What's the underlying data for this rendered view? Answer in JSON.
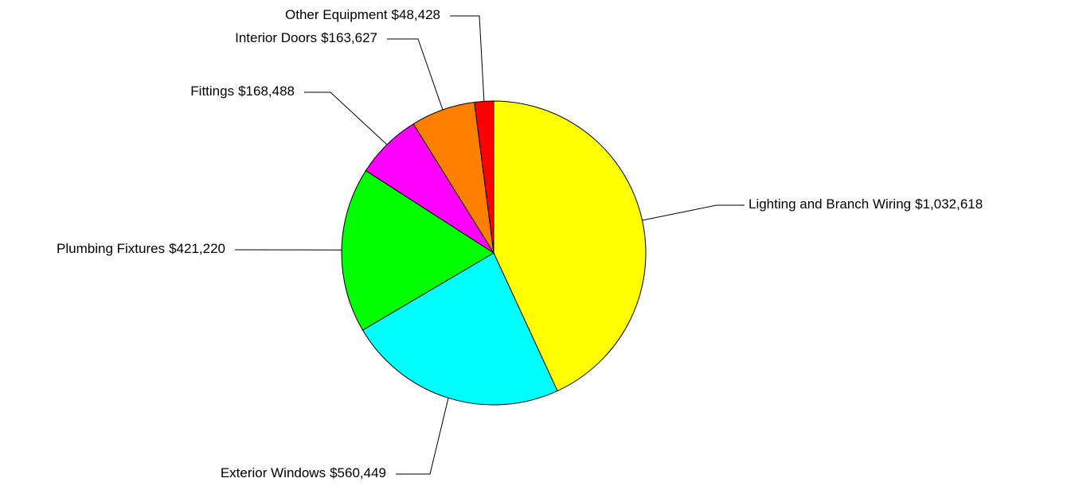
{
  "chart_data": {
    "type": "pie",
    "categories": [
      "Lighting and Branch Wiring",
      "Exterior Windows",
      "Plumbing Fixtures",
      "Fittings",
      "Interior Doors",
      "Other Equipment"
    ],
    "values": [
      1032618,
      560449,
      421220,
      168488,
      163627,
      48428
    ],
    "value_labels": [
      "$1,032,618",
      "$560,449",
      "$421,220",
      "$168,488",
      "$163,627",
      "$48,428"
    ],
    "colors": [
      "#ffff00",
      "#00ffff",
      "#00ff00",
      "#ff00ff",
      "#ff8000",
      "#ff0000"
    ]
  }
}
